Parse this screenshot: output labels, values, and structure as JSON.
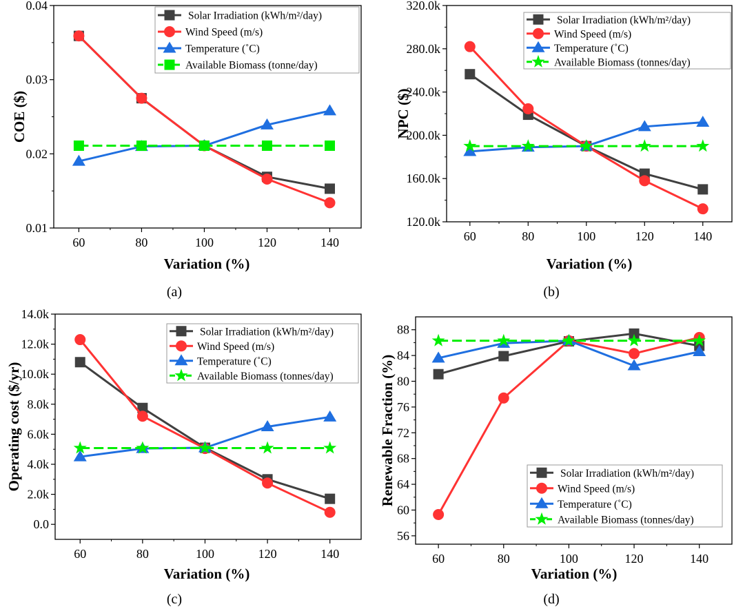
{
  "chart_data": [
    {
      "type": "line",
      "caption": "(a)",
      "xlabel": "Variation (%)",
      "ylabel": "COE ($)",
      "x": [
        60,
        80,
        100,
        120,
        140
      ],
      "xlim": [
        52,
        150
      ],
      "ylim": [
        0.01,
        0.04
      ],
      "yticks": [
        0.01,
        0.02,
        0.03,
        0.04
      ],
      "ytick_labels": [
        "0.01",
        "0.02",
        "0.03",
        "0.04"
      ],
      "legend_position": "top-right",
      "series": [
        {
          "name": "Solar Irradiation (kWh/m²/day)",
          "color": "#404040",
          "marker": "square",
          "dashed": false,
          "values": [
            0.0359,
            0.0275,
            0.0211,
            0.0169,
            0.0153
          ]
        },
        {
          "name": "Wind Speed (m/s)",
          "color": "#ff3333",
          "marker": "circle",
          "dashed": false,
          "values": [
            0.0359,
            0.0275,
            0.0211,
            0.0166,
            0.0134
          ]
        },
        {
          "name": "Temperature (˚C)",
          "color": "#1f6fe0",
          "marker": "triangle",
          "dashed": false,
          "values": [
            0.019,
            0.021,
            0.0211,
            0.0239,
            0.0258
          ]
        },
        {
          "name": "Available Biomass (tonne/day)",
          "color": "#00ee00",
          "marker": "square",
          "dashed": true,
          "values": [
            0.0211,
            0.0211,
            0.0211,
            0.0211,
            0.0211
          ]
        }
      ]
    },
    {
      "type": "line",
      "caption": "(b)",
      "xlabel": "Variation (%)",
      "ylabel": "NPC ($)",
      "x": [
        60,
        80,
        100,
        120,
        140
      ],
      "xlim": [
        52,
        150
      ],
      "ylim": [
        120000,
        320000
      ],
      "yticks": [
        120000,
        160000,
        200000,
        240000,
        280000,
        320000
      ],
      "ytick_labels": [
        "120.0k",
        "160.0k",
        "200.0k",
        "240.0k",
        "280.0k",
        "320.0k"
      ],
      "legend_position": "top-right",
      "series": [
        {
          "name": "Solar Irradiation (kWh/m²/day)",
          "color": "#404040",
          "marker": "square",
          "dashed": false,
          "values": [
            256500,
            219000,
            190000,
            164500,
            150000
          ]
        },
        {
          "name": "Wind Speed (m/s)",
          "color": "#ff3333",
          "marker": "circle",
          "dashed": false,
          "values": [
            282000,
            224500,
            190000,
            158000,
            132000
          ]
        },
        {
          "name": "Temperature (˚C)",
          "color": "#1f6fe0",
          "marker": "triangle",
          "dashed": false,
          "values": [
            185000,
            189000,
            190000,
            208000,
            212000
          ]
        },
        {
          "name": "Available Biomass (tonnes/day)",
          "color": "#00ee00",
          "marker": "star",
          "dashed": true,
          "values": [
            190000,
            190000,
            190000,
            190000,
            190000
          ]
        }
      ]
    },
    {
      "type": "line",
      "caption": "(c)",
      "xlabel": "Variation (%)",
      "ylabel": "Operating cost ($/yr)",
      "x": [
        60,
        80,
        100,
        120,
        140
      ],
      "xlim": [
        52,
        150
      ],
      "ylim": [
        -1000,
        14000
      ],
      "yticks": [
        0,
        2000,
        4000,
        6000,
        8000,
        10000,
        12000,
        14000
      ],
      "ytick_labels": [
        "0.0",
        "2.0k",
        "4.0k",
        "6.0k",
        "8.0k",
        "10.0k",
        "12.0k",
        "14.0k"
      ],
      "legend_position": "top-right",
      "series": [
        {
          "name": "Solar Irradiation (kWh/m²/day)",
          "color": "#404040",
          "marker": "square",
          "dashed": false,
          "values": [
            10800,
            7750,
            5100,
            3000,
            1700
          ]
        },
        {
          "name": "Wind Speed (m/s)",
          "color": "#ff3333",
          "marker": "circle",
          "dashed": false,
          "values": [
            12300,
            7200,
            5050,
            2750,
            800
          ]
        },
        {
          "name": "Temperature (˚C)",
          "color": "#1f6fe0",
          "marker": "triangle",
          "dashed": false,
          "values": [
            4500,
            5050,
            5100,
            6500,
            7150
          ]
        },
        {
          "name": "Available Biomass (tonnes/day)",
          "color": "#00ee00",
          "marker": "star",
          "dashed": true,
          "values": [
            5080,
            5080,
            5080,
            5080,
            5080
          ]
        }
      ]
    },
    {
      "type": "line",
      "caption": "(d)",
      "xlabel": "Variation (%)",
      "ylabel": "Renewable Fraction (%)",
      "x": [
        60,
        80,
        100,
        120,
        140
      ],
      "xlim": [
        53,
        150
      ],
      "ylim": [
        54.7,
        90
      ],
      "yticks": [
        56,
        60,
        64,
        68,
        72,
        76,
        80,
        84,
        88
      ],
      "ytick_labels": [
        "56",
        "60",
        "64",
        "68",
        "72",
        "76",
        "80",
        "84",
        "88"
      ],
      "legend_position": "bottom-right",
      "series": [
        {
          "name": "Solar Irradiation (kWh/m²/day)",
          "color": "#404040",
          "marker": "square",
          "dashed": false,
          "values": [
            81.1,
            83.9,
            86.2,
            87.4,
            85.5
          ]
        },
        {
          "name": "Wind Speed (m/s)",
          "color": "#ff3333",
          "marker": "circle",
          "dashed": false,
          "values": [
            59.3,
            77.4,
            86.3,
            84.3,
            86.8
          ]
        },
        {
          "name": "Temperature (˚C)",
          "color": "#1f6fe0",
          "marker": "triangle",
          "dashed": false,
          "values": [
            83.6,
            85.9,
            86.3,
            82.4,
            84.6
          ]
        },
        {
          "name": "Available Biomass (tonnes/day)",
          "color": "#00ee00",
          "marker": "star",
          "dashed": true,
          "values": [
            86.3,
            86.3,
            86.3,
            86.3,
            86.3
          ]
        }
      ]
    }
  ]
}
